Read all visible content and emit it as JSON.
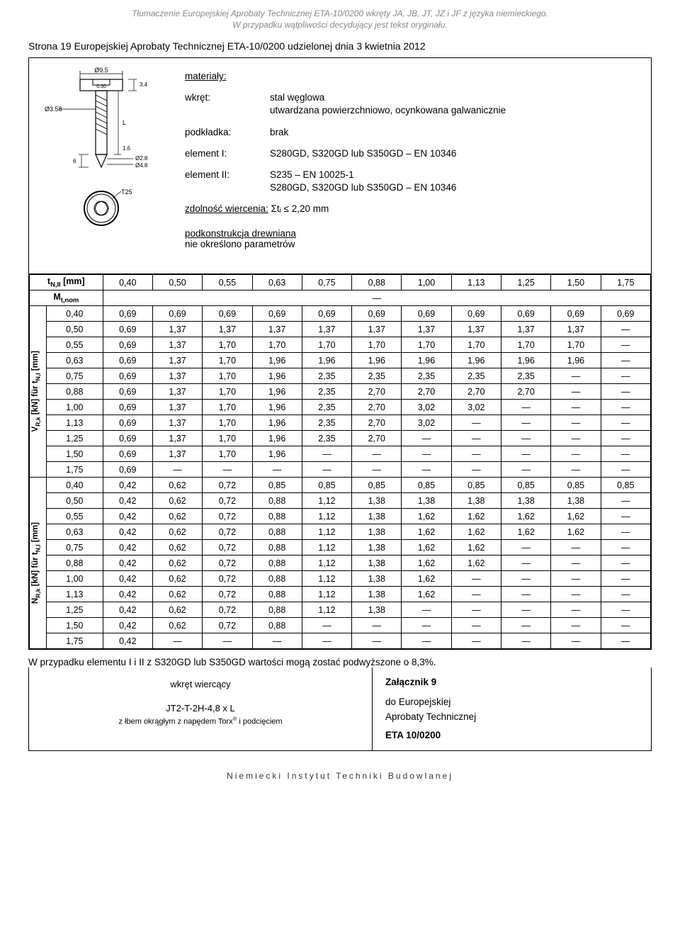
{
  "header": {
    "line1": "Tłumaczenie Europejskiej Aprobaty Technicznej ETA-10/0200 wkręty JA, JB, JT, JZ i JF z języka niemieckiego.",
    "line2": "W przypadku wątpliwości decydujący jest tekst oryginału."
  },
  "page_line": "Strona 19 Europejskiej Aprobaty Technicznej ETA-10/0200 udzielonej dnia 3 kwietnia 2012",
  "diagram": {
    "d_top": "Ø9.5",
    "d_shaft": "Ø3.58",
    "d_inner": "Ø2.8",
    "d_flange": "Ø4.8",
    "h_head": "3.4",
    "h_tip": "1.6",
    "h_gap": "6",
    "length_sym": "L",
    "torx": "T25",
    "head_inner": "0.30"
  },
  "spec": {
    "title": "materiały:",
    "rows": [
      {
        "label": "wkręt:",
        "value": "stal węglowa\nutwardzana powierzchniowo, ocynkowana galwanicznie"
      },
      {
        "label": "podkładka:",
        "value": "brak"
      },
      {
        "label": "element I:",
        "value": "S280GD, S320GD lub S350GD – EN 10346"
      },
      {
        "label": "element II:",
        "value": "S235 – EN 10025-1\nS280GD, S320GD lub S350GD – EN 10346"
      }
    ],
    "drilling_label": "zdolność wiercenia:",
    "drilling_value": " Σtᵢ ≤ 2,20 mm",
    "sub_label": "podkonstrukcja drewniana",
    "sub_value": "nie określono parametrów"
  },
  "table": {
    "header_label_html": "t<sub>N,II</sub> [mm]",
    "mt_label_html": "M<sub>t,nom</sub>",
    "vlabel1_html": "V<sub>R,k</sub> [kN] für t<sub>N,I</sub> [mm]",
    "vlabel2_html": "N<sub>R,k</sub> [kN] für t<sub>N,I</sub> [mm]",
    "header_values": [
      "0,40",
      "0,50",
      "0,55",
      "0,63",
      "0,75",
      "0,88",
      "1,00",
      "1,13",
      "1,25",
      "1,50",
      "1,75"
    ],
    "mt_value": "—",
    "row_labels": [
      "0,40",
      "0,50",
      "0,55",
      "0,63",
      "0,75",
      "0,88",
      "1,00",
      "1,13",
      "1,25",
      "1,50",
      "1,75"
    ],
    "section1": [
      [
        "0,69",
        "0,69",
        "0,69",
        "0,69",
        "0,69",
        "0,69",
        "0,69",
        "0,69",
        "0,69",
        "0,69",
        "0,69"
      ],
      [
        "0,69",
        "1,37",
        "1,37",
        "1,37",
        "1,37",
        "1,37",
        "1,37",
        "1,37",
        "1,37",
        "1,37",
        "—"
      ],
      [
        "0,69",
        "1,37",
        "1,70",
        "1,70",
        "1,70",
        "1,70",
        "1,70",
        "1,70",
        "1,70",
        "1,70",
        "—"
      ],
      [
        "0,69",
        "1,37",
        "1,70",
        "1,96",
        "1,96",
        "1,96",
        "1,96",
        "1,96",
        "1,96",
        "1,96",
        "—"
      ],
      [
        "0,69",
        "1,37",
        "1,70",
        "1,96",
        "2,35",
        "2,35",
        "2,35",
        "2,35",
        "2,35",
        "—",
        "—"
      ],
      [
        "0,69",
        "1,37",
        "1,70",
        "1,96",
        "2,35",
        "2,70",
        "2,70",
        "2,70",
        "2,70",
        "—",
        "—"
      ],
      [
        "0,69",
        "1,37",
        "1,70",
        "1,96",
        "2,35",
        "2,70",
        "3,02",
        "3,02",
        "—",
        "—",
        "—"
      ],
      [
        "0,69",
        "1,37",
        "1,70",
        "1,96",
        "2,35",
        "2,70",
        "3,02",
        "—",
        "—",
        "—",
        "—"
      ],
      [
        "0,69",
        "1,37",
        "1,70",
        "1,96",
        "2,35",
        "2,70",
        "—",
        "—",
        "—",
        "—",
        "—"
      ],
      [
        "0,69",
        "1,37",
        "1,70",
        "1,96",
        "—",
        "—",
        "—",
        "—",
        "—",
        "—",
        "—"
      ],
      [
        "0,69",
        "—",
        "—",
        "—",
        "—",
        "—",
        "—",
        "—",
        "—",
        "—",
        "—"
      ]
    ],
    "section2": [
      [
        "0,42",
        "0,62",
        "0,72",
        "0,85",
        "0,85",
        "0,85",
        "0,85",
        "0,85",
        "0,85",
        "0,85",
        "0,85"
      ],
      [
        "0,42",
        "0,62",
        "0,72",
        "0,88",
        "1,12",
        "1,38",
        "1,38",
        "1,38",
        "1,38",
        "1,38",
        "—"
      ],
      [
        "0,42",
        "0,62",
        "0,72",
        "0,88",
        "1,12",
        "1,38",
        "1,62",
        "1,62",
        "1,62",
        "1,62",
        "—"
      ],
      [
        "0,42",
        "0,62",
        "0,72",
        "0,88",
        "1,12",
        "1,38",
        "1,62",
        "1,62",
        "1,62",
        "1,62",
        "—"
      ],
      [
        "0,42",
        "0,62",
        "0,72",
        "0,88",
        "1,12",
        "1,38",
        "1,62",
        "1,62",
        "—",
        "—",
        "—"
      ],
      [
        "0,42",
        "0,62",
        "0,72",
        "0,88",
        "1,12",
        "1,38",
        "1,62",
        "1,62",
        "—",
        "—",
        "—"
      ],
      [
        "0,42",
        "0,62",
        "0,72",
        "0,88",
        "1,12",
        "1,38",
        "1,62",
        "—",
        "—",
        "—",
        "—"
      ],
      [
        "0,42",
        "0,62",
        "0,72",
        "0,88",
        "1,12",
        "1,38",
        "1,62",
        "—",
        "—",
        "—",
        "—"
      ],
      [
        "0,42",
        "0,62",
        "0,72",
        "0,88",
        "1,12",
        "1,38",
        "—",
        "—",
        "—",
        "—",
        "—"
      ],
      [
        "0,42",
        "0,62",
        "0,72",
        "0,88",
        "—",
        "—",
        "—",
        "—",
        "—",
        "—",
        "—"
      ],
      [
        "0,42",
        "—",
        "—",
        "—",
        "—",
        "—",
        "—",
        "—",
        "—",
        "—",
        "—"
      ]
    ]
  },
  "footer_note": "W przypadku elementu I i II z S320GD lub S350GD wartości mogą zostać podwyższone o 8,3%.",
  "footer_left": {
    "line1": "wkręt wiercący",
    "line2": "JT2-T-2H-4,8 x L",
    "line3_html": "z łbem okrągłym z napędem Torx<sup>®</sup> i podcięciem"
  },
  "footer_right": {
    "line1": "Załącznik 9",
    "line2": "do Europejskiej",
    "line3": "Aprobaty Technicznej",
    "line4": "ETA 10/0200"
  },
  "institute": "Niemiecki Instytut Techniki Budowlanej"
}
